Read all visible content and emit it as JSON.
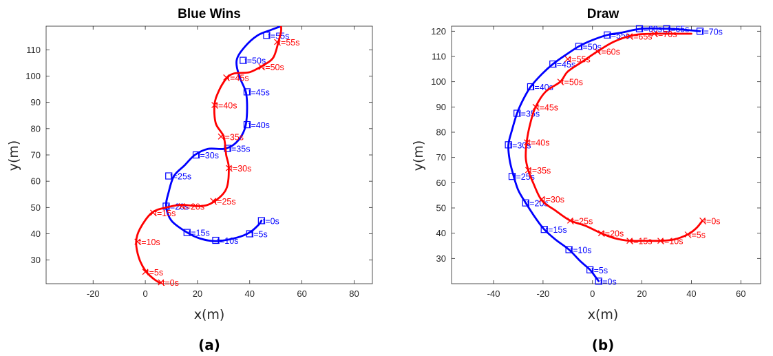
{
  "chart_data": [
    {
      "type": "line",
      "title": "Blue Wins",
      "xlabel": "x(m)",
      "ylabel": "y(m)",
      "xlim": [
        -38,
        87
      ],
      "ylim": [
        21,
        119
      ],
      "xticks": [
        -20,
        0,
        20,
        40,
        60,
        80
      ],
      "yticks": [
        30,
        40,
        50,
        60,
        70,
        80,
        90,
        100,
        110
      ],
      "caption": "(a)",
      "colors": {
        "blue": "#0000ff",
        "red": "#ff0000"
      },
      "series": [
        {
          "color": "blue",
          "marker": "square",
          "points": [
            [
              44.5,
              45
            ],
            [
              43.5,
              43.5
            ],
            [
              40,
              40.5
            ],
            [
              35,
              38.5
            ],
            [
              27,
              37.2
            ],
            [
              21,
              38.2
            ],
            [
              16,
              40.5
            ],
            [
              10,
              45
            ],
            [
              8,
              50.5
            ],
            [
              9,
              56
            ],
            [
              11,
              62
            ],
            [
              15,
              66
            ],
            [
              19,
              70
            ],
            [
              24,
              72.3
            ],
            [
              30,
              72.3
            ],
            [
              34,
              74
            ],
            [
              37,
              77.5
            ],
            [
              38.5,
              81.5
            ],
            [
              39,
              88
            ],
            [
              38.5,
              94
            ],
            [
              36,
              100
            ],
            [
              35,
              106
            ],
            [
              38,
              111
            ],
            [
              43,
              115.5
            ],
            [
              48,
              117.5
            ],
            [
              52,
              119
            ]
          ],
          "labels": [
            {
              "text": "t=0s",
              "x": 44.5,
              "y": 45
            },
            {
              "text": "t=5s",
              "x": 40,
              "y": 40
            },
            {
              "text": "t=10s",
              "x": 27,
              "y": 37.5
            },
            {
              "text": "t=15s",
              "x": 16,
              "y": 40.5
            },
            {
              "text": "t=20s",
              "x": 8,
              "y": 50.5
            },
            {
              "text": "t=25s",
              "x": 9,
              "y": 62
            },
            {
              "text": "t=30s",
              "x": 19.5,
              "y": 70
            },
            {
              "text": "t=35s",
              "x": 31.5,
              "y": 72.5
            },
            {
              "text": "t=40s",
              "x": 39,
              "y": 81.5
            },
            {
              "text": "t=45s",
              "x": 39,
              "y": 94
            },
            {
              "text": "t=50s",
              "x": 37.5,
              "y": 106
            },
            {
              "text": "t=55s",
              "x": 46.5,
              "y": 115.5
            }
          ]
        },
        {
          "color": "red",
          "marker": "x",
          "points": [
            [
              6,
              21
            ],
            [
              3,
              23
            ],
            [
              0,
              26
            ],
            [
              -2.5,
              31
            ],
            [
              -3.5,
              37
            ],
            [
              -2,
              42
            ],
            [
              2.5,
              48
            ],
            [
              8,
              50
            ],
            [
              14,
              51
            ],
            [
              21,
              50.5
            ],
            [
              26,
              52
            ],
            [
              31,
              57
            ],
            [
              32,
              65
            ],
            [
              31,
              70
            ],
            [
              30,
              77
            ],
            [
              27,
              82
            ],
            [
              26.5,
              89
            ],
            [
              28,
              94
            ],
            [
              31,
              99
            ],
            [
              34,
              101
            ],
            [
              40,
              101.5
            ],
            [
              45,
              104
            ],
            [
              49,
              107
            ],
            [
              51,
              113
            ],
            [
              52,
              117
            ],
            [
              52,
              119
            ]
          ],
          "labels": [
            {
              "text": "t=0s",
              "x": 6,
              "y": 21.5
            },
            {
              "text": "t=5s",
              "x": 0,
              "y": 25.5
            },
            {
              "text": "t=10s",
              "x": -3,
              "y": 37
            },
            {
              "text": "t=15s",
              "x": 3,
              "y": 48
            },
            {
              "text": "t=20s",
              "x": 14,
              "y": 50.5
            },
            {
              "text": "t=25s",
              "x": 26,
              "y": 52.5
            },
            {
              "text": "t=30s",
              "x": 32,
              "y": 65
            },
            {
              "text": "t=35s",
              "x": 29,
              "y": 77
            },
            {
              "text": "t=40s",
              "x": 26.5,
              "y": 89
            },
            {
              "text": "t=45s",
              "x": 31,
              "y": 99.5
            },
            {
              "text": "t=50s",
              "x": 44.5,
              "y": 103.5
            },
            {
              "text": "t=55s",
              "x": 50.5,
              "y": 113
            }
          ]
        }
      ]
    },
    {
      "type": "line",
      "title": "Draw",
      "xlabel": "x(m)",
      "ylabel": "y(m)",
      "xlim": [
        -57,
        68
      ],
      "ylim": [
        20,
        122
      ],
      "xticks": [
        -40,
        -20,
        0,
        20,
        40,
        60
      ],
      "yticks": [
        30,
        40,
        50,
        60,
        70,
        80,
        90,
        100,
        110,
        120
      ],
      "caption": "(b)",
      "colors": {
        "blue": "#0000ff",
        "red": "#ff0000"
      },
      "series": [
        {
          "color": "blue",
          "marker": "square",
          "points": [
            [
              2.5,
              21
            ],
            [
              1,
              23
            ],
            [
              -1,
              25.5
            ],
            [
              -5,
              29
            ],
            [
              -9.5,
              33.5
            ],
            [
              -15,
              37.5
            ],
            [
              -19.5,
              41.5
            ],
            [
              -23,
              46
            ],
            [
              -27,
              52
            ],
            [
              -30,
              57
            ],
            [
              -32,
              63
            ],
            [
              -33.5,
              69
            ],
            [
              -34,
              75
            ],
            [
              -32.5,
              81
            ],
            [
              -30.5,
              87.5
            ],
            [
              -28,
              93
            ],
            [
              -25,
              98
            ],
            [
              -20.5,
              103
            ],
            [
              -16,
              107
            ],
            [
              -11,
              110.5
            ],
            [
              -5.5,
              114
            ],
            [
              0,
              116.5
            ],
            [
              6,
              118.5
            ],
            [
              12,
              119.5
            ],
            [
              20,
              121
            ],
            [
              30,
              121
            ],
            [
              38,
              120.5
            ],
            [
              43.5,
              120
            ]
          ],
          "labels": [
            {
              "text": "t=0s",
              "x": 2.5,
              "y": 21
            },
            {
              "text": "t=5s",
              "x": -1,
              "y": 25.5
            },
            {
              "text": "t=10s",
              "x": -9.5,
              "y": 33.5
            },
            {
              "text": "t=15s",
              "x": -19.5,
              "y": 41.5
            },
            {
              "text": "t=20s",
              "x": -27,
              "y": 52
            },
            {
              "text": "t=25s",
              "x": -32.5,
              "y": 62.5
            },
            {
              "text": "t=30s",
              "x": -34,
              "y": 75
            },
            {
              "text": "t=35s",
              "x": -30.5,
              "y": 87.5
            },
            {
              "text": "t=40s",
              "x": -25,
              "y": 98
            },
            {
              "text": "t=45s",
              "x": -16,
              "y": 107
            },
            {
              "text": "t=50s",
              "x": -5.5,
              "y": 114
            },
            {
              "text": "t=55s",
              "x": 6,
              "y": 118.5
            },
            {
              "text": "t=60s",
              "x": 19,
              "y": 121
            },
            {
              "text": "t=65s",
              "x": 30,
              "y": 121
            },
            {
              "text": "t=70s",
              "x": 43.5,
              "y": 120
            }
          ]
        },
        {
          "color": "red",
          "marker": "x",
          "points": [
            [
              44.5,
              45
            ],
            [
              42,
              42
            ],
            [
              38.5,
              39.5
            ],
            [
              33,
              37.5
            ],
            [
              27.5,
              37
            ],
            [
              21,
              37
            ],
            [
              15,
              37
            ],
            [
              9,
              38
            ],
            [
              3.5,
              40
            ],
            [
              -3,
              43
            ],
            [
              -9,
              45
            ],
            [
              -15,
              49
            ],
            [
              -20.5,
              53
            ],
            [
              -24,
              60
            ],
            [
              -26,
              65
            ],
            [
              -27,
              70
            ],
            [
              -26.5,
              77
            ],
            [
              -25,
              84
            ],
            [
              -23,
              90
            ],
            [
              -19,
              96
            ],
            [
              -13,
              100
            ],
            [
              -10,
              104
            ],
            [
              -4,
              108
            ],
            [
              2,
              112
            ],
            [
              9,
              116
            ],
            [
              17,
              118.5
            ],
            [
              25,
              119
            ],
            [
              32,
              119
            ],
            [
              40,
              119
            ]
          ],
          "labels": [
            {
              "text": "t=0s",
              "x": 44.5,
              "y": 45
            },
            {
              "text": "t=5s",
              "x": 38.5,
              "y": 39.5
            },
            {
              "text": "t=10s",
              "x": 27.5,
              "y": 37
            },
            {
              "text": "t=15s",
              "x": 15,
              "y": 37
            },
            {
              "text": "t=20s",
              "x": 3.5,
              "y": 40
            },
            {
              "text": "t=25s",
              "x": -9,
              "y": 45
            },
            {
              "text": "t=30s",
              "x": -20.5,
              "y": 53.5
            },
            {
              "text": "t=35s",
              "x": -26,
              "y": 65
            },
            {
              "text": "t=40s",
              "x": -26.5,
              "y": 76
            },
            {
              "text": "t=45s",
              "x": -23,
              "y": 90
            },
            {
              "text": "t=50s",
              "x": -13,
              "y": 100
            },
            {
              "text": "t=55s",
              "x": -10,
              "y": 109
            },
            {
              "text": "t=60s",
              "x": 2,
              "y": 112
            },
            {
              "text": "t=65s",
              "x": 15,
              "y": 118
            },
            {
              "text": "t=70s",
              "x": 25,
              "y": 119
            }
          ]
        }
      ]
    }
  ]
}
